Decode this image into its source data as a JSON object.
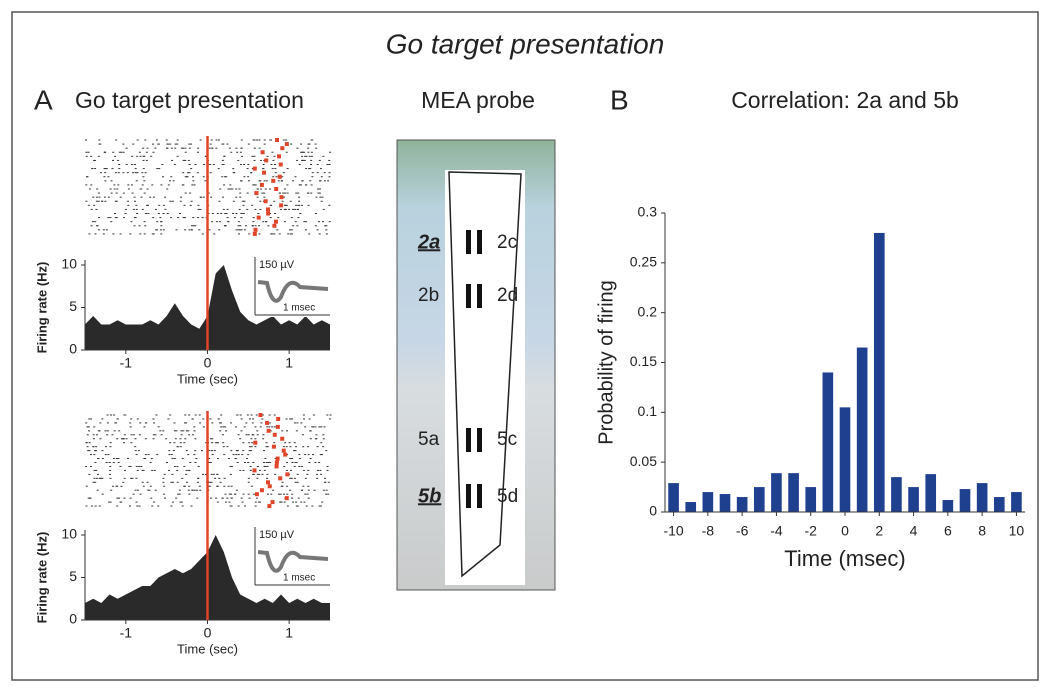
{
  "title": "Go target presentation",
  "panel_a": {
    "label": "A",
    "title": "Go target presentation"
  },
  "panel_b": {
    "label": "B",
    "title": "Correlation: 2a and 5b"
  },
  "probe": {
    "title": "MEA probe",
    "sites": [
      "2a",
      "2c",
      "2b",
      "2d",
      "5a",
      "5c",
      "5b",
      "5d"
    ]
  },
  "chart_data": [
    {
      "type": "area",
      "ylabel": "Firing rate (Hz)",
      "xlabel": "Time (sec)",
      "color": "#2a2a2a",
      "x": [
        -1.5,
        -1.4,
        -1.3,
        -1.2,
        -1.1,
        -1.0,
        -0.9,
        -0.8,
        -0.7,
        -0.6,
        -0.5,
        -0.4,
        -0.3,
        -0.2,
        -0.1,
        0,
        0.1,
        0.2,
        0.3,
        0.4,
        0.5,
        0.6,
        0.7,
        0.8,
        0.9,
        1.0,
        1.1,
        1.2,
        1.3,
        1.4,
        1.5
      ],
      "values": [
        3,
        4,
        3,
        3,
        3.5,
        3,
        3,
        3,
        3.5,
        3,
        4,
        5.5,
        4,
        3,
        2.5,
        4,
        9,
        10,
        7,
        4.5,
        3.5,
        3,
        3.5,
        4,
        3,
        3.5,
        3,
        4,
        3,
        3.5,
        3
      ],
      "xlim": [
        -1.5,
        1.5
      ],
      "ylim": [
        0,
        10
      ],
      "xticks": [
        -1,
        0,
        1
      ],
      "yticks": [
        0,
        5,
        10
      ],
      "event_line": {
        "x": 0,
        "color": "#e0452a"
      },
      "inset": {
        "amplitude": "150 µV",
        "duration": "1 msec"
      }
    },
    {
      "type": "area",
      "ylabel": "Firing rate (Hz)",
      "xlabel": "Time (sec)",
      "color": "#2a2a2a",
      "x": [
        -1.5,
        -1.4,
        -1.3,
        -1.2,
        -1.1,
        -1.0,
        -0.9,
        -0.8,
        -0.7,
        -0.6,
        -0.5,
        -0.4,
        -0.3,
        -0.2,
        -0.1,
        0,
        0.1,
        0.2,
        0.3,
        0.4,
        0.5,
        0.6,
        0.7,
        0.8,
        0.9,
        1.0,
        1.1,
        1.2,
        1.3,
        1.4,
        1.5
      ],
      "values": [
        2,
        2.5,
        2,
        3,
        2.5,
        3,
        3.5,
        4,
        4,
        5,
        5.5,
        6,
        5.5,
        6,
        7,
        8,
        10,
        8,
        5,
        3,
        2.5,
        2,
        2.5,
        2,
        3,
        2,
        2.5,
        2,
        2.5,
        2,
        2
      ],
      "xlim": [
        -1.5,
        1.5
      ],
      "ylim": [
        0,
        10
      ],
      "xticks": [
        -1,
        0,
        1
      ],
      "yticks": [
        0,
        5,
        10
      ],
      "event_line": {
        "x": 0,
        "color": "#e0452a"
      },
      "inset": {
        "amplitude": "150 µV",
        "duration": "1 msec"
      }
    },
    {
      "type": "bar",
      "ylabel": "Probability of firing",
      "xlabel": "Time (msec)",
      "color": "#1f3f8f",
      "x": [
        -10,
        -9,
        -8,
        -7,
        -6,
        -5,
        -4,
        -3,
        -2,
        -1,
        0,
        1,
        2,
        3,
        4,
        5,
        6,
        7,
        8,
        9,
        10
      ],
      "values": [
        0.029,
        0.01,
        0.02,
        0.018,
        0.015,
        0.025,
        0.039,
        0.039,
        0.025,
        0.14,
        0.105,
        0.165,
        0.28,
        0.035,
        0.025,
        0.038,
        0.012,
        0.023,
        0.029,
        0.015,
        0.02
      ],
      "xlim": [
        -10.5,
        10.5
      ],
      "ylim": [
        0,
        0.3
      ],
      "xticks": [
        -10,
        -8,
        -6,
        -4,
        -2,
        0,
        2,
        4,
        6,
        8,
        10
      ],
      "yticks": [
        0,
        0.05,
        0.1,
        0.15,
        0.2,
        0.25,
        0.3
      ]
    }
  ]
}
